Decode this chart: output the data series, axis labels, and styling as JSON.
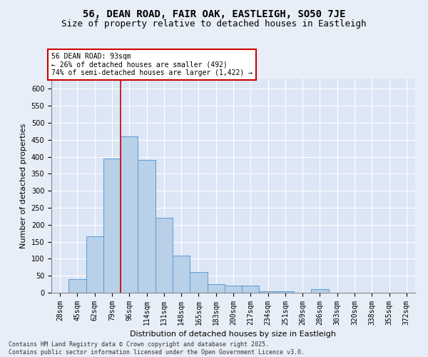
{
  "title1": "56, DEAN ROAD, FAIR OAK, EASTLEIGH, SO50 7JE",
  "title2": "Size of property relative to detached houses in Eastleigh",
  "xlabel": "Distribution of detached houses by size in Eastleigh",
  "ylabel": "Number of detached properties",
  "categories": [
    "28sqm",
    "45sqm",
    "62sqm",
    "79sqm",
    "96sqm",
    "114sqm",
    "131sqm",
    "148sqm",
    "165sqm",
    "183sqm",
    "200sqm",
    "217sqm",
    "234sqm",
    "251sqm",
    "269sqm",
    "286sqm",
    "303sqm",
    "320sqm",
    "338sqm",
    "355sqm",
    "372sqm"
  ],
  "values": [
    0,
    40,
    165,
    395,
    460,
    390,
    220,
    110,
    60,
    25,
    20,
    20,
    5,
    5,
    0,
    10,
    0,
    0,
    0,
    0,
    0
  ],
  "bar_color": "#b8d0e8",
  "bar_edge_color": "#5b9bd5",
  "vline_color": "#cc0000",
  "vline_pos": 3.5,
  "annotation_text": "56 DEAN ROAD: 93sqm\n← 26% of detached houses are smaller (492)\n74% of semi-detached houses are larger (1,422) →",
  "annotation_box_color": "#ffffff",
  "annotation_box_edge_color": "#cc0000",
  "ylim": [
    0,
    630
  ],
  "yticks": [
    0,
    50,
    100,
    150,
    200,
    250,
    300,
    350,
    400,
    450,
    500,
    550,
    600
  ],
  "background_color": "#dce6f5",
  "fig_background_color": "#e8eef7",
  "footer_text": "Contains HM Land Registry data © Crown copyright and database right 2025.\nContains public sector information licensed under the Open Government Licence v3.0.",
  "title_fontsize": 10,
  "subtitle_fontsize": 9,
  "tick_fontsize": 7,
  "ylabel_fontsize": 8,
  "xlabel_fontsize": 8,
  "annotation_fontsize": 7,
  "footer_fontsize": 6
}
